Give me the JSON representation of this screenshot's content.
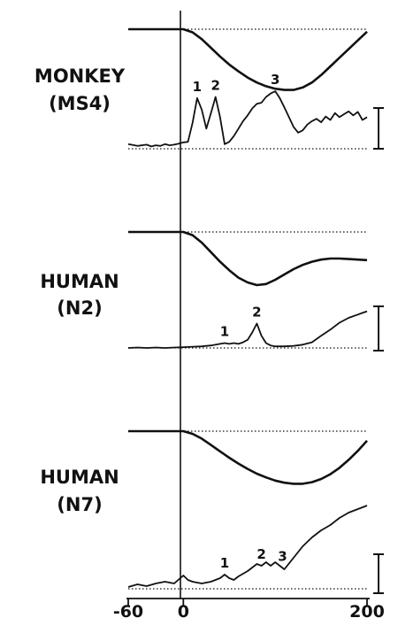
{
  "chart_data": {
    "type": "line",
    "x_ticks": [
      "-60",
      "0",
      "200"
    ],
    "xlim": [
      -60,
      200
    ],
    "panels": [
      {
        "label_line1": "MONKEY",
        "label_line2": "(MS4)",
        "stimulus": {
          "x": [
            -60,
            -40,
            -20,
            0,
            10,
            20,
            30,
            40,
            50,
            60,
            70,
            80,
            90,
            100,
            110,
            120,
            130,
            140,
            150,
            160,
            170,
            180,
            190,
            200
          ],
          "y": [
            0,
            0,
            0,
            0,
            -0.05,
            -0.16,
            -0.3,
            -0.44,
            -0.57,
            -0.68,
            -0.78,
            -0.86,
            -0.92,
            -0.96,
            -0.98,
            -0.98,
            -0.94,
            -0.86,
            -0.74,
            -0.6,
            -0.46,
            -0.32,
            -0.18,
            -0.04
          ]
        },
        "response": {
          "x": [
            -60,
            -50,
            -40,
            -35,
            -30,
            -25,
            -20,
            -15,
            -10,
            -5,
            0,
            5,
            10,
            15,
            20,
            25,
            30,
            35,
            40,
            45,
            50,
            55,
            60,
            65,
            70,
            75,
            80,
            85,
            90,
            95,
            100,
            105,
            110,
            115,
            120,
            125,
            130,
            135,
            140,
            145,
            150,
            155,
            160,
            165,
            170,
            175,
            180,
            185,
            190,
            195,
            200
          ],
          "y": [
            0.08,
            0.05,
            0.07,
            0.04,
            0.06,
            0.05,
            0.08,
            0.06,
            0.07,
            0.09,
            0.11,
            0.12,
            0.45,
            0.88,
            0.68,
            0.35,
            0.62,
            0.9,
            0.55,
            0.08,
            0.12,
            0.22,
            0.35,
            0.48,
            0.58,
            0.7,
            0.78,
            0.8,
            0.9,
            0.96,
            1.0,
            0.88,
            0.72,
            0.55,
            0.38,
            0.28,
            0.32,
            0.42,
            0.48,
            0.52,
            0.46,
            0.56,
            0.5,
            0.62,
            0.55,
            0.6,
            0.65,
            0.58,
            0.64,
            0.5,
            0.55
          ]
        },
        "peaks": [
          {
            "label": "1",
            "x": 15
          },
          {
            "label": "2",
            "x": 35
          },
          {
            "label": "3",
            "x": 100
          }
        ]
      },
      {
        "label_line1": "HUMAN",
        "label_line2": "(N2)",
        "stimulus": {
          "x": [
            -60,
            -40,
            -20,
            0,
            10,
            20,
            30,
            40,
            50,
            60,
            70,
            80,
            90,
            100,
            110,
            120,
            130,
            140,
            150,
            160,
            170,
            180,
            190,
            200
          ],
          "y": [
            0,
            0,
            0,
            0,
            -0.06,
            -0.2,
            -0.38,
            -0.56,
            -0.72,
            -0.86,
            -0.95,
            -1.0,
            -0.98,
            -0.9,
            -0.8,
            -0.7,
            -0.62,
            -0.56,
            -0.52,
            -0.5,
            -0.5,
            -0.51,
            -0.52,
            -0.53
          ]
        },
        "response": {
          "x": [
            -60,
            -50,
            -40,
            -30,
            -20,
            -10,
            0,
            10,
            20,
            30,
            40,
            45,
            50,
            55,
            60,
            65,
            70,
            75,
            80,
            85,
            90,
            95,
            100,
            110,
            120,
            130,
            140,
            150,
            160,
            170,
            180,
            190,
            195,
            200
          ],
          "y": [
            0.0,
            0.01,
            0.0,
            0.01,
            0.0,
            0.01,
            0.02,
            0.03,
            0.04,
            0.06,
            0.1,
            0.12,
            0.1,
            0.12,
            0.1,
            0.14,
            0.2,
            0.38,
            0.6,
            0.3,
            0.12,
            0.06,
            0.04,
            0.04,
            0.05,
            0.08,
            0.14,
            0.3,
            0.45,
            0.62,
            0.74,
            0.82,
            0.86,
            0.9
          ]
        },
        "peaks": [
          {
            "label": "1",
            "x": 45
          },
          {
            "label": "2",
            "x": 80
          }
        ]
      },
      {
        "label_line1": "HUMAN",
        "label_line2": "(N7)",
        "stimulus": {
          "x": [
            -60,
            -40,
            -20,
            0,
            10,
            20,
            30,
            40,
            50,
            60,
            70,
            80,
            90,
            100,
            110,
            120,
            130,
            140,
            150,
            160,
            170,
            180,
            190,
            200
          ],
          "y": [
            0,
            0,
            0,
            0,
            -0.05,
            -0.14,
            -0.26,
            -0.38,
            -0.5,
            -0.61,
            -0.71,
            -0.8,
            -0.87,
            -0.93,
            -0.97,
            -0.99,
            -0.99,
            -0.96,
            -0.9,
            -0.81,
            -0.69,
            -0.54,
            -0.37,
            -0.18
          ]
        },
        "response": {
          "x": [
            -60,
            -50,
            -40,
            -30,
            -20,
            -10,
            0,
            5,
            10,
            20,
            30,
            40,
            45,
            50,
            55,
            60,
            70,
            75,
            80,
            85,
            90,
            95,
            100,
            110,
            120,
            130,
            140,
            150,
            160,
            170,
            180,
            190,
            195,
            200
          ],
          "y": [
            0.02,
            0.05,
            0.03,
            0.06,
            0.08,
            0.06,
            0.15,
            0.1,
            0.08,
            0.06,
            0.08,
            0.12,
            0.16,
            0.12,
            0.1,
            0.14,
            0.2,
            0.24,
            0.28,
            0.26,
            0.3,
            0.26,
            0.3,
            0.22,
            0.35,
            0.48,
            0.58,
            0.66,
            0.72,
            0.8,
            0.86,
            0.9,
            0.92,
            0.94
          ]
        },
        "peaks": [
          {
            "label": "1",
            "x": 45
          },
          {
            "label": "2",
            "x": 85
          },
          {
            "label": "3",
            "x": 108
          }
        ]
      }
    ]
  }
}
